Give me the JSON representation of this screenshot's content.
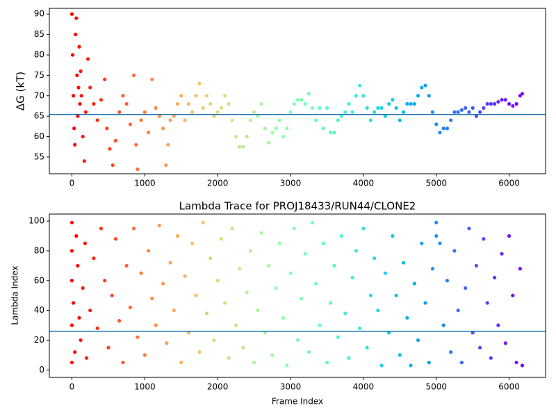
{
  "chart_data": [
    {
      "type": "scatter",
      "ylabel": "ΔG (kT)",
      "colormap": "rainbow_r",
      "hline": 65.4,
      "hline_color": "#1f77b4",
      "xlim": [
        -310,
        6500
      ],
      "ylim": [
        50.9,
        91.4
      ],
      "xticks": [
        0,
        1000,
        2000,
        3000,
        4000,
        5000,
        6000
      ],
      "yticks": [
        55,
        60,
        65,
        70,
        75,
        80,
        85,
        90
      ],
      "x": [
        0,
        10,
        20,
        30,
        40,
        50,
        60,
        70,
        80,
        90,
        100,
        110,
        120,
        130,
        150,
        170,
        190,
        220,
        250,
        300,
        350,
        400,
        450,
        480,
        520,
        560,
        600,
        650,
        700,
        750,
        800,
        850,
        880,
        900,
        950,
        1000,
        1050,
        1100,
        1150,
        1200,
        1250,
        1290,
        1320,
        1350,
        1400,
        1450,
        1500,
        1550,
        1600,
        1650,
        1700,
        1750,
        1800,
        1850,
        1900,
        1950,
        2000,
        2050,
        2100,
        2150,
        2200,
        2250,
        2300,
        2350,
        2400,
        2450,
        2500,
        2550,
        2600,
        2650,
        2700,
        2750,
        2800,
        2850,
        2900,
        2950,
        3000,
        3050,
        3100,
        3150,
        3200,
        3250,
        3300,
        3350,
        3400,
        3450,
        3500,
        3550,
        3600,
        3650,
        3700,
        3750,
        3800,
        3850,
        3900,
        3950,
        4000,
        4050,
        4100,
        4150,
        4200,
        4250,
        4300,
        4350,
        4400,
        4450,
        4500,
        4550,
        4600,
        4650,
        4700,
        4750,
        4800,
        4850,
        4900,
        4950,
        5000,
        5050,
        5100,
        5150,
        5200,
        5250,
        5300,
        5350,
        5400,
        5450,
        5500,
        5550,
        5600,
        5650,
        5700,
        5750,
        5800,
        5850,
        5900,
        5950,
        6000,
        6050,
        6100,
        6150,
        6180
      ],
      "values": [
        90,
        80,
        70,
        62,
        58,
        85,
        89,
        75,
        65,
        72,
        82,
        68,
        76,
        70,
        60,
        54,
        66,
        79,
        72,
        68,
        64,
        69,
        74,
        62,
        57,
        53,
        59,
        66,
        70,
        68,
        63,
        75,
        58,
        52,
        64,
        66,
        61,
        74,
        67,
        65,
        62,
        53,
        58,
        64,
        65,
        68,
        70,
        64,
        68,
        66,
        70,
        73,
        67,
        70,
        68,
        65,
        66,
        67,
        70,
        68,
        64,
        60,
        57.5,
        57.5,
        60,
        64,
        66,
        65,
        68,
        62,
        58.5,
        61,
        62,
        64,
        60,
        62,
        66,
        68,
        69,
        69,
        68,
        70.5,
        67,
        64,
        67,
        62,
        67,
        61,
        61,
        64,
        65,
        66,
        68,
        66,
        70,
        72.5,
        70,
        67,
        64,
        66,
        67,
        67,
        65,
        68,
        69,
        67,
        64,
        66,
        68,
        68,
        68,
        70,
        72,
        72.5,
        70,
        66,
        63,
        61,
        62,
        62,
        64,
        66,
        66,
        66.5,
        67,
        66,
        67,
        65,
        66,
        67,
        68,
        68,
        68,
        68.5,
        69,
        69,
        68,
        67.5,
        68,
        70,
        70.5
      ]
    },
    {
      "type": "scatter",
      "title": "Lambda Trace for PROJ18433/RUN44/CLONE2",
      "xlabel": "Frame Index",
      "ylabel": "Lambda Index",
      "colormap": "rainbow_r",
      "hline": 26,
      "hline_color": "#1f77b4",
      "xlim": [
        -310,
        6500
      ],
      "ylim": [
        -5,
        104.7
      ],
      "xticks": [
        0,
        1000,
        2000,
        3000,
        4000,
        5000,
        6000
      ],
      "yticks": [
        0,
        20,
        40,
        60,
        80,
        100
      ],
      "x": [
        0,
        0,
        0,
        0,
        0,
        20,
        40,
        60,
        80,
        100,
        120,
        150,
        180,
        200,
        250,
        300,
        350,
        400,
        450,
        500,
        550,
        600,
        650,
        700,
        750,
        800,
        850,
        900,
        950,
        1000,
        1050,
        1100,
        1150,
        1200,
        1250,
        1300,
        1350,
        1400,
        1450,
        1500,
        1550,
        1600,
        1650,
        1700,
        1750,
        1800,
        1850,
        1900,
        1950,
        2000,
        2050,
        2100,
        2150,
        2200,
        2250,
        2300,
        2350,
        2400,
        2450,
        2500,
        2550,
        2600,
        2650,
        2700,
        2750,
        2800,
        2850,
        2900,
        2950,
        3000,
        3050,
        3100,
        3150,
        3200,
        3250,
        3300,
        3350,
        3400,
        3450,
        3500,
        3550,
        3600,
        3650,
        3700,
        3750,
        3800,
        3850,
        3900,
        3950,
        4000,
        4050,
        4100,
        4150,
        4200,
        4250,
        4300,
        4350,
        4400,
        4450,
        4500,
        4550,
        4600,
        4650,
        4700,
        4750,
        4800,
        4850,
        4900,
        4950,
        5000,
        5000,
        5050,
        5100,
        5150,
        5200,
        5250,
        5300,
        5350,
        5400,
        5450,
        5500,
        5550,
        5600,
        5650,
        5700,
        5750,
        5800,
        5850,
        5900,
        5950,
        6000,
        6050,
        6100,
        6150,
        6180
      ],
      "values": [
        99,
        80,
        60,
        30,
        5,
        45,
        12,
        90,
        70,
        35,
        20,
        55,
        85,
        8,
        40,
        75,
        28,
        95,
        60,
        15,
        50,
        88,
        33,
        5,
        70,
        42,
        95,
        22,
        65,
        10,
        80,
        48,
        30,
        97,
        58,
        18,
        72,
        40,
        90,
        5,
        63,
        25,
        85,
        50,
        12,
        99,
        38,
        75,
        20,
        60,
        88,
        45,
        8,
        95,
        30,
        68,
        15,
        52,
        80,
        5,
        40,
        92,
        25,
        70,
        10,
        55,
        85,
        35,
        3,
        65,
        95,
        20,
        48,
        78,
        12,
        99,
        58,
        30,
        85,
        5,
        45,
        70,
        22,
        90,
        38,
        8,
        62,
        80,
        28,
        95,
        15,
        50,
        75,
        40,
        3,
        65,
        25,
        90,
        50,
        10,
        72,
        35,
        3,
        58,
        20,
        85,
        45,
        5,
        68,
        99,
        90,
        85,
        30,
        60,
        12,
        80,
        40,
        5,
        55,
        95,
        25,
        70,
        15,
        88,
        45,
        8,
        62,
        30,
        78,
        18,
        90,
        50,
        5,
        68,
        3
      ]
    }
  ]
}
